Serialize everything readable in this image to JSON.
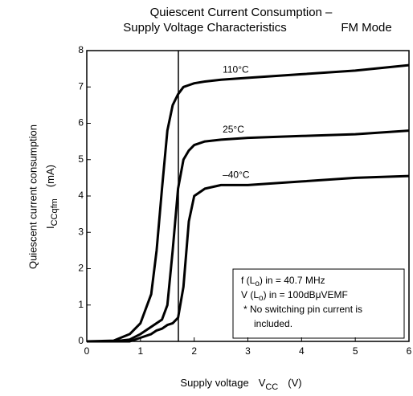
{
  "chart_data": {
    "type": "line",
    "title": [
      "Quiescent Current Consumption –",
      "Supply Voltage Characteristics"
    ],
    "subtitle": "FM Mode",
    "x_label": {
      "text": "Supply voltage",
      "symbol": "V",
      "sub": "CC",
      "unit": "(V)"
    },
    "y_label": {
      "text": "Quiescent current consumption",
      "symbol": "I",
      "sub": "CCqfm",
      "unit": "(mA)"
    },
    "x": [
      0,
      0.5,
      0.8,
      1.0,
      1.2,
      1.3,
      1.4,
      1.5,
      1.6,
      1.7,
      1.8,
      1.9,
      2.0,
      2.2,
      2.5,
      3,
      4,
      5,
      6
    ],
    "series": [
      {
        "name": "110°C",
        "color": "#000000",
        "values": [
          0,
          0.02,
          0.2,
          0.5,
          1.3,
          2.5,
          4.2,
          5.8,
          6.5,
          6.8,
          7.0,
          7.05,
          7.1,
          7.15,
          7.2,
          7.25,
          7.35,
          7.45,
          7.6
        ]
      },
      {
        "name": "25°C",
        "color": "#000000",
        "values": [
          0,
          0,
          0.05,
          0.2,
          0.4,
          0.5,
          0.6,
          1.0,
          2.5,
          4.2,
          5.0,
          5.25,
          5.4,
          5.5,
          5.55,
          5.6,
          5.65,
          5.7,
          5.8
        ]
      },
      {
        "name": "–40°C",
        "color": "#000000",
        "values": [
          0,
          0,
          0,
          0.1,
          0.2,
          0.3,
          0.35,
          0.45,
          0.5,
          0.65,
          1.5,
          3.3,
          4.0,
          4.2,
          4.3,
          4.3,
          4.4,
          4.5,
          4.55
        ]
      }
    ],
    "annotations": [
      {
        "a": "f (L",
        "sub": "o",
        "b": ") in = 40.7 MHz"
      },
      {
        "a": "V (L",
        "sub": "o",
        "b": ") in = 100dBμVEMF"
      },
      {
        "a": "* No switching pin current is"
      },
      {
        "a": "included."
      }
    ],
    "xlim": [
      0,
      6
    ],
    "xticks": [
      0,
      1,
      2,
      3,
      4,
      5,
      6
    ],
    "ylim": [
      0,
      8
    ],
    "yticks": [
      0,
      1,
      2,
      3,
      4,
      5,
      6,
      7,
      8
    ],
    "grid": false
  }
}
